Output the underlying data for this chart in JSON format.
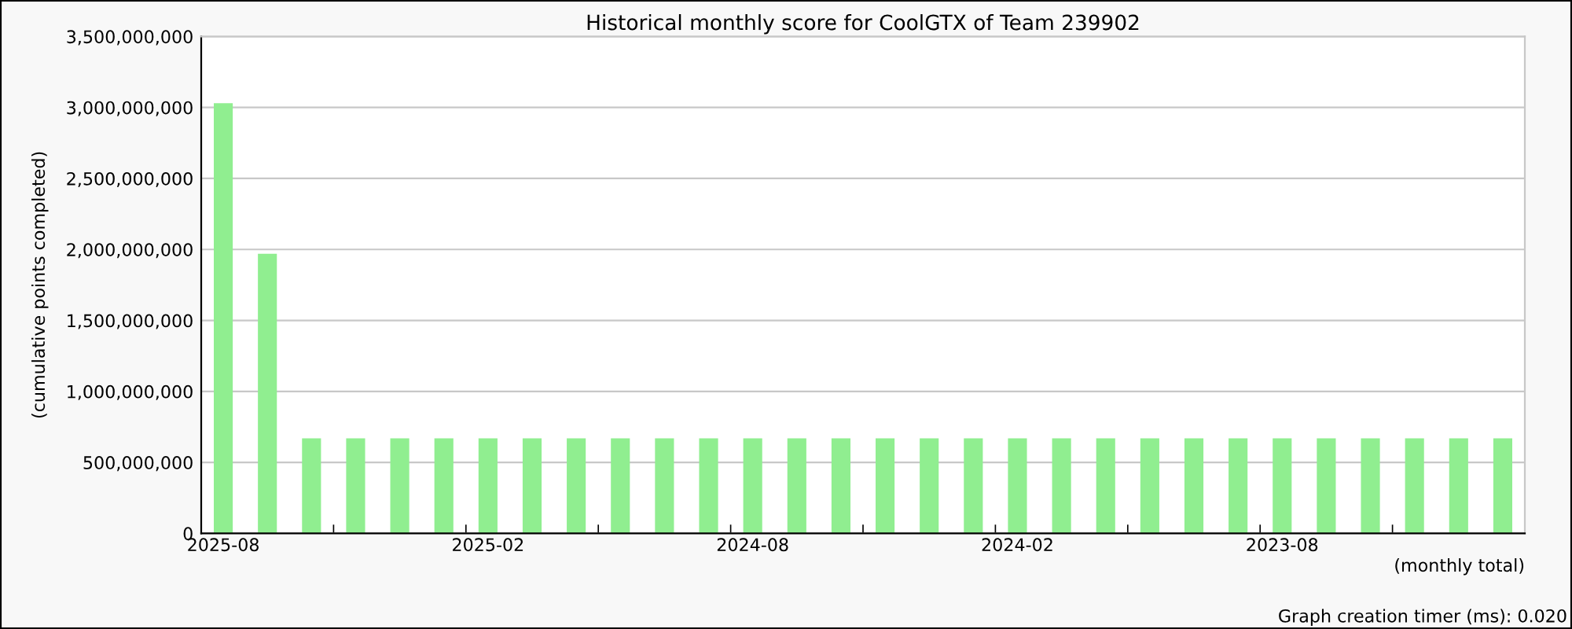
{
  "chart_data": {
    "type": "bar",
    "title": "Historical monthly score for CoolGTX of Team 239902",
    "ylabel": "(cumulative points completed)",
    "xlabel": "(monthly total)",
    "annotations": [
      "Graph creation timer (ms): 0.020"
    ],
    "categories": [
      "2025-08",
      null,
      null,
      null,
      null,
      null,
      "2025-02",
      null,
      null,
      null,
      null,
      null,
      "2024-08",
      null,
      null,
      null,
      null,
      null,
      "2024-02",
      null,
      null,
      null,
      null,
      null,
      "2023-08",
      null,
      null,
      null,
      null,
      null
    ],
    "values": [
      3030000000,
      1970000000,
      670000000,
      670000000,
      670000000,
      670000000,
      670000000,
      670000000,
      670000000,
      670000000,
      670000000,
      670000000,
      670000000,
      670000000,
      670000000,
      670000000,
      670000000,
      670000000,
      670000000,
      670000000,
      670000000,
      670000000,
      670000000,
      670000000,
      670000000,
      670000000,
      670000000,
      670000000,
      670000000,
      670000000
    ],
    "color": "#90ee90",
    "ylim": [
      0,
      3500000000
    ],
    "yticks": [
      {
        "value": 0,
        "label": "0"
      },
      {
        "value": 500000000,
        "label": "500,000,000"
      },
      {
        "value": 1000000000,
        "label": "1,000,000,000"
      },
      {
        "value": 1500000000,
        "label": "1,500,000,000"
      },
      {
        "value": 2000000000,
        "label": "2,000,000,000"
      },
      {
        "value": 2500000000,
        "label": "2,500,000,000"
      },
      {
        "value": 3000000000,
        "label": "3,000,000,000"
      },
      {
        "value": 3500000000,
        "label": "3,500,000,000"
      }
    ],
    "grid": "y"
  }
}
